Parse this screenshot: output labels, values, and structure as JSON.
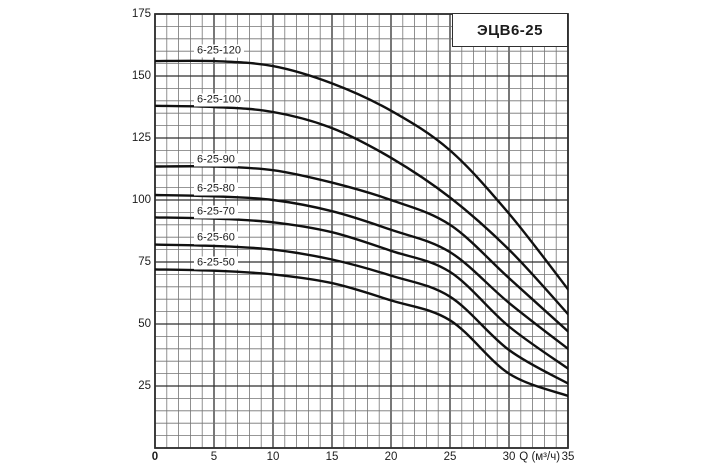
{
  "chart_data": {
    "type": "line",
    "title": "ЭЦВ6-25",
    "xlabel": "Q (м³/ч)",
    "ylabel": "",
    "xlim": [
      0,
      35
    ],
    "ylim": [
      0,
      175
    ],
    "x_major_step": 5,
    "x_minor_step": 1,
    "y_major_step": 25,
    "y_minor_step": 5,
    "grid": "on",
    "legend_position": "labels-on-curves",
    "x_tick_labels": [
      "0",
      "5",
      "10",
      "15",
      "20",
      "25",
      "30",
      "35"
    ],
    "y_tick_labels": [
      "175",
      "150",
      "125",
      "100",
      "75",
      "50",
      "25"
    ],
    "x": [
      0,
      5,
      10,
      15,
      20,
      25,
      30,
      35
    ],
    "series": [
      {
        "name": "6-25-120",
        "values": [
          156,
          156,
          154,
          147,
          136,
          120,
          94.5,
          64
        ],
        "label_h": 160
      },
      {
        "name": "6-25-100",
        "values": [
          138,
          137.5,
          135.5,
          129,
          117,
          101,
          80,
          54
        ],
        "label_h": 140.5
      },
      {
        "name": "6-25-90",
        "values": [
          113.5,
          113.5,
          112,
          107,
          100,
          90,
          68.5,
          47
        ],
        "label_h": 116
      },
      {
        "name": "6-25-80",
        "values": [
          102,
          101.5,
          100,
          95.5,
          88,
          79,
          58.5,
          40
        ],
        "label_h": 104.5
      },
      {
        "name": "6-25-70",
        "values": [
          93,
          92.5,
          91,
          87,
          79.5,
          71,
          49,
          32
        ],
        "label_h": 95
      },
      {
        "name": "6-25-60",
        "values": [
          82,
          81.5,
          80,
          76,
          69.5,
          61,
          39.5,
          26
        ],
        "label_h": 84.5
      },
      {
        "name": "6-25-50",
        "values": [
          72,
          71.5,
          70,
          66.5,
          59.5,
          51.5,
          30,
          21
        ],
        "label_h": 74.5
      }
    ],
    "colors": {
      "curve": "#111111",
      "grid_minor": "#757575",
      "grid_major": "#2f2f2f",
      "border": "#2f2f2f",
      "text": "#1c1c1c",
      "background": "#ffffff"
    }
  }
}
